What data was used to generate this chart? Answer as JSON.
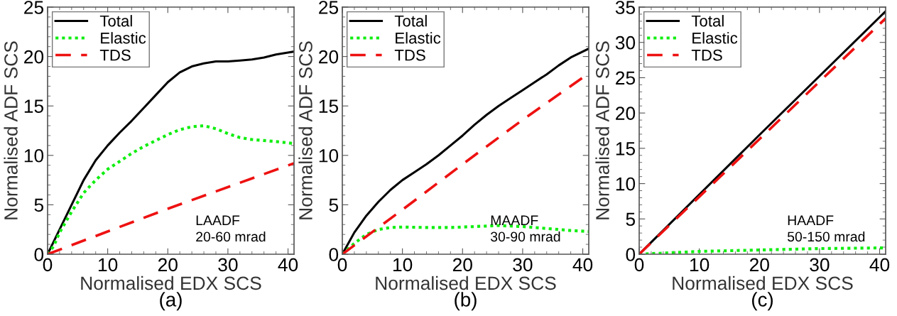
{
  "chart_data": [
    {
      "type": "line",
      "title": "(a)",
      "xlabel": "Normalised EDX SCS",
      "ylabel": "Normalised ADF SCS",
      "xlim": [
        0,
        41
      ],
      "ylim": [
        0,
        25
      ],
      "xticks": [
        0,
        10,
        20,
        30,
        40
      ],
      "yticks": [
        0,
        5,
        10,
        15,
        20,
        25
      ],
      "legend": "top left",
      "grid": false,
      "annotations": [
        "LAADF\n20-60 mrad"
      ],
      "series": [
        {
          "name": "Total",
          "color": "#000000",
          "line_style": "solid",
          "x": [
            0,
            2,
            4,
            6,
            8,
            10,
            12,
            14,
            16,
            18,
            20,
            22,
            24,
            26,
            28,
            30,
            32,
            34,
            36,
            38,
            40,
            41
          ],
          "values": [
            0,
            2.5,
            5,
            7.5,
            9.5,
            11,
            12.3,
            13.5,
            14.8,
            16.1,
            17.4,
            18.4,
            19.0,
            19.3,
            19.5,
            19.5,
            19.6,
            19.7,
            19.9,
            20.2,
            20.4,
            20.5
          ]
        },
        {
          "name": "Elastic",
          "color": "#11ee11",
          "line_style": "dotted",
          "x": [
            0,
            1,
            2,
            4,
            6,
            8,
            10,
            12,
            14,
            16,
            18,
            20,
            22,
            24,
            26,
            28,
            30,
            32,
            34,
            36,
            38,
            41
          ],
          "values": [
            0,
            0.8,
            2.2,
            4.3,
            6.2,
            7.5,
            8.6,
            9.4,
            10.2,
            10.9,
            11.5,
            12.1,
            12.6,
            12.9,
            13.0,
            12.7,
            12.2,
            11.8,
            11.6,
            11.5,
            11.4,
            11.2
          ]
        },
        {
          "name": "TDS",
          "color": "#ee1111",
          "line_style": "dashed",
          "x": [
            0,
            20,
            41
          ],
          "values": [
            0,
            4.6,
            9.2
          ]
        }
      ]
    },
    {
      "type": "line",
      "title": "(b)",
      "xlabel": "Normalised EDX SCS",
      "ylabel": "Normalised ADF SCS",
      "xlim": [
        0,
        41
      ],
      "ylim": [
        0,
        25
      ],
      "xticks": [
        0,
        10,
        20,
        30,
        40
      ],
      "yticks": [
        0,
        5,
        10,
        15,
        20,
        25
      ],
      "legend": "top left",
      "grid": false,
      "annotations": [
        "MAADF\n30-90 mrad"
      ],
      "series": [
        {
          "name": "Total",
          "color": "#000000",
          "line_style": "solid",
          "x": [
            0,
            2,
            4,
            6,
            8,
            10,
            12,
            14,
            16,
            18,
            20,
            22,
            24,
            26,
            28,
            30,
            32,
            34,
            36,
            38,
            40,
            41
          ],
          "values": [
            0,
            2.2,
            3.9,
            5.3,
            6.5,
            7.5,
            8.3,
            9.1,
            10.0,
            11.0,
            12.0,
            13.1,
            14.1,
            15.0,
            15.8,
            16.6,
            17.4,
            18.2,
            19.1,
            19.9,
            20.5,
            20.8
          ]
        },
        {
          "name": "Elastic",
          "color": "#11ee11",
          "line_style": "dotted",
          "x": [
            0,
            2,
            4,
            6,
            8,
            10,
            14,
            18,
            22,
            26,
            30,
            34,
            38,
            41
          ],
          "values": [
            0,
            1.1,
            2.0,
            2.5,
            2.7,
            2.75,
            2.7,
            2.7,
            2.8,
            2.9,
            2.8,
            2.6,
            2.4,
            2.3
          ]
        },
        {
          "name": "TDS",
          "color": "#ee1111",
          "line_style": "dashed",
          "x": [
            0,
            10,
            20,
            30,
            41
          ],
          "values": [
            0,
            4.5,
            9.1,
            13.6,
            18.3
          ]
        }
      ]
    },
    {
      "type": "line",
      "title": "(c)",
      "xlabel": "Normalised EDX SCS",
      "ylabel": "Normalised ADF SCS",
      "xlim": [
        0,
        41
      ],
      "ylim": [
        0,
        35
      ],
      "xticks": [
        0,
        10,
        20,
        30,
        40
      ],
      "yticks": [
        0,
        5,
        10,
        15,
        20,
        25,
        30,
        35
      ],
      "legend": "top left",
      "grid": false,
      "annotations": [
        "HAADF\n50-150 mrad"
      ],
      "series": [
        {
          "name": "Total",
          "color": "#000000",
          "line_style": "solid",
          "x": [
            0,
            20,
            41
          ],
          "values": [
            0,
            16.9,
            34.4
          ]
        },
        {
          "name": "Elastic",
          "color": "#11ee11",
          "line_style": "dotted",
          "x": [
            0,
            10,
            20,
            30,
            41
          ],
          "values": [
            0,
            0.4,
            0.6,
            0.8,
            0.9
          ]
        },
        {
          "name": "TDS",
          "color": "#ee1111",
          "line_style": "dashed",
          "x": [
            0,
            20,
            41
          ],
          "values": [
            0,
            16.3,
            33.4
          ]
        }
      ]
    }
  ]
}
